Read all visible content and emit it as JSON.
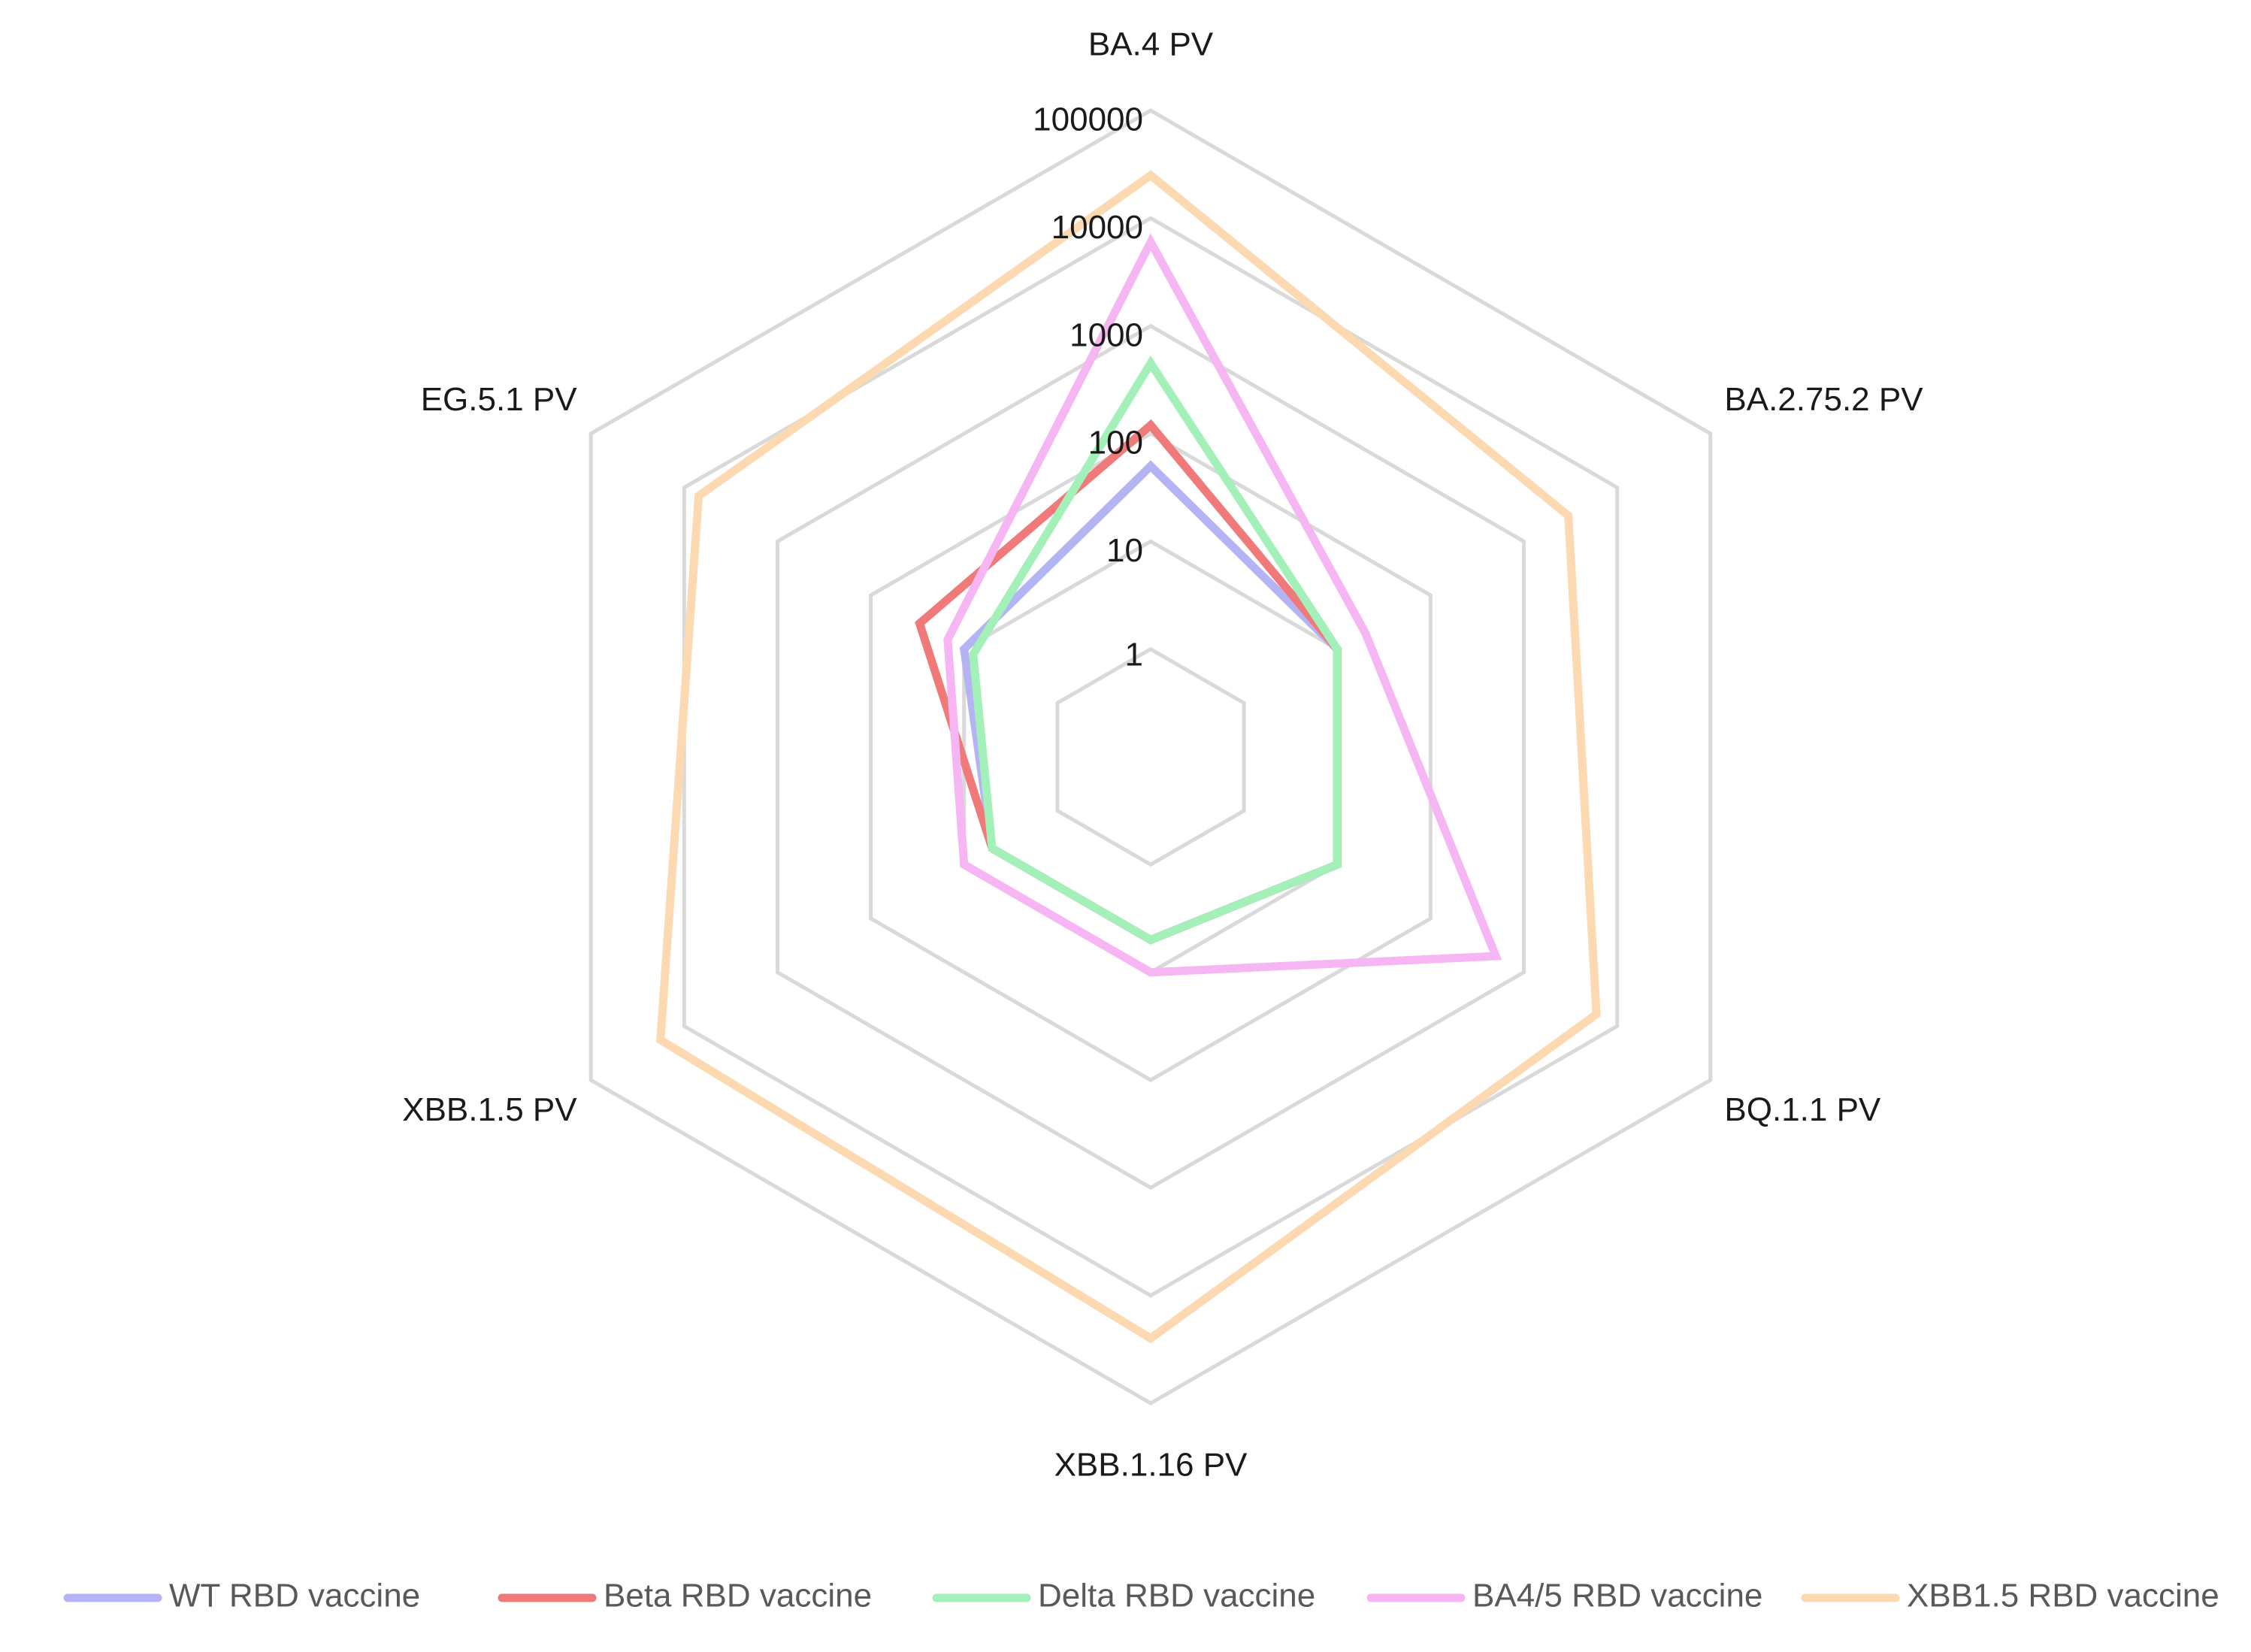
{
  "chart_data": {
    "type": "radar",
    "title": "",
    "scale": "log10",
    "range": [
      1,
      100000
    ],
    "grid": true,
    "legend_position": "bottom",
    "axes": [
      "BA.4 PV",
      "BA.2.75.2 PV",
      "BQ.1.1 PV",
      "XBB.1.16 PV",
      "XBB.1.5  PV",
      "EG.5.1 PV"
    ],
    "ticks": [
      "1",
      "10",
      "100",
      "1000",
      "10000",
      "100000"
    ],
    "series": [
      {
        "name": "WT RBD vaccine",
        "color": "#b4b4f5",
        "values": [
          50,
          10,
          10,
          5,
          5,
          10
        ]
      },
      {
        "name": "Beta RBD vaccine",
        "color": "#f07a7a",
        "values": [
          120,
          10,
          10,
          5,
          5,
          30
        ]
      },
      {
        "name": "Delta RBD vaccine",
        "color": "#a3f0b8",
        "values": [
          450,
          10,
          10,
          5,
          5,
          8
        ]
      },
      {
        "name": "BA4/5 RBD vaccine",
        "color": "#f5b6f3",
        "values": [
          6000,
          20,
          500,
          10,
          10,
          15
        ]
      },
      {
        "name": "XBB1.5 RBD vaccine",
        "color": "#fcd9b0",
        "values": [
          25000,
          3000,
          6000,
          25000,
          18000,
          7000
        ]
      }
    ]
  }
}
